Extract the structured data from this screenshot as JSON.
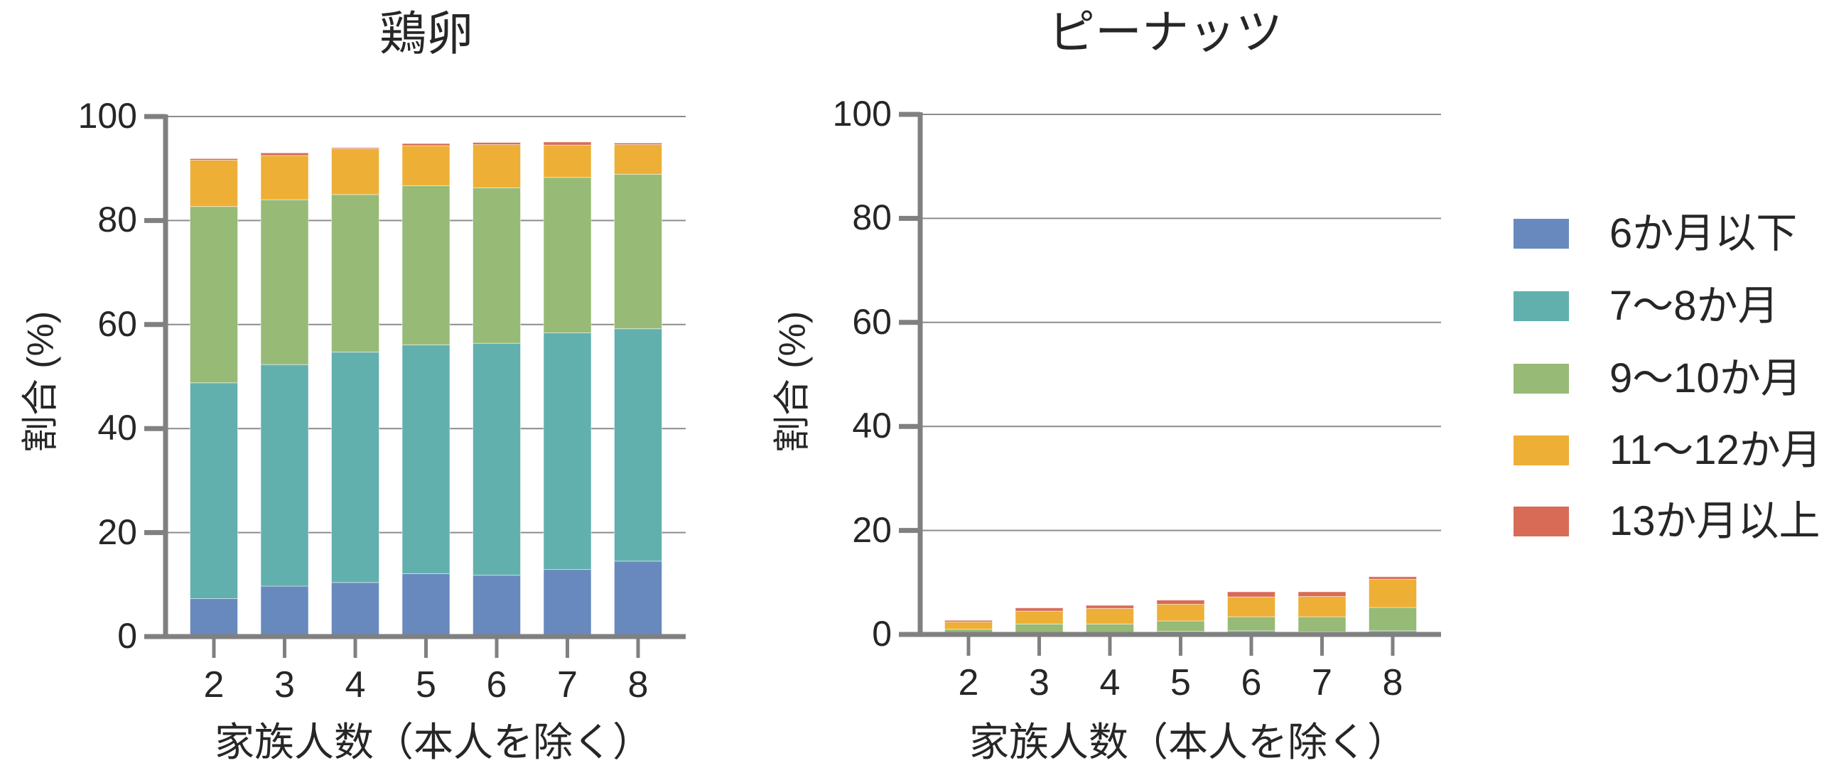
{
  "chart_data": [
    {
      "type": "bar",
      "stacked": true,
      "title": "鶏卵",
      "xlabel": "家族人数（本人を除く）",
      "ylabel": "割合 (%)",
      "ylim": [
        0,
        100
      ],
      "yticks": [
        0,
        20,
        40,
        60,
        80,
        100
      ],
      "grid": true,
      "categories": [
        "2",
        "3",
        "4",
        "5",
        "6",
        "7",
        "8"
      ],
      "series": [
        {
          "name": "6か月以下",
          "color": "#6889BD",
          "values": [
            7.3,
            9.7,
            10.4,
            12.1,
            11.8,
            12.9,
            14.5
          ]
        },
        {
          "name": "7～8か月",
          "color": "#61B0AD",
          "values": [
            41.5,
            42.6,
            44.3,
            44.0,
            44.6,
            45.5,
            44.7
          ]
        },
        {
          "name": "9～10か月",
          "color": "#97BA76",
          "values": [
            33.9,
            31.7,
            30.3,
            30.6,
            29.9,
            29.9,
            29.7
          ]
        },
        {
          "name": "11～12か月",
          "color": "#EDAF36",
          "values": [
            8.9,
            8.5,
            8.8,
            7.7,
            8.3,
            6.2,
            5.7
          ]
        },
        {
          "name": "13か月以上",
          "color": "#D86B56",
          "values": [
            0.3,
            0.5,
            0.2,
            0.4,
            0.4,
            0.6,
            0.3
          ]
        }
      ]
    },
    {
      "type": "bar",
      "stacked": true,
      "title": "ピーナッツ",
      "xlabel": "家族人数（本人を除く）",
      "ylabel": "割合 (%)",
      "ylim": [
        0,
        100
      ],
      "yticks": [
        0,
        20,
        40,
        60,
        80,
        100
      ],
      "grid": true,
      "categories": [
        "2",
        "3",
        "4",
        "5",
        "6",
        "7",
        "8"
      ],
      "series": [
        {
          "name": "6か月以下",
          "color": "#6889BD",
          "values": [
            0.0,
            0.0,
            0.0,
            0.0,
            0.0,
            0.0,
            0.0
          ]
        },
        {
          "name": "7～8か月",
          "color": "#61B0AD",
          "values": [
            0.1,
            0.2,
            0.2,
            0.6,
            0.7,
            0.5,
            0.7
          ]
        },
        {
          "name": "9～10か月",
          "color": "#97BA76",
          "values": [
            0.9,
            1.8,
            1.8,
            2.0,
            2.7,
            2.9,
            4.5
          ]
        },
        {
          "name": "11～12か月",
          "color": "#EDAF36",
          "values": [
            1.4,
            2.5,
            3.0,
            3.2,
            3.8,
            3.9,
            5.4
          ]
        },
        {
          "name": "13か月以上",
          "color": "#D86B56",
          "values": [
            0.3,
            0.6,
            0.6,
            0.8,
            1.0,
            0.9,
            0.5
          ]
        }
      ]
    }
  ],
  "legend": {
    "position": "right",
    "items": [
      {
        "label": "6か月以下",
        "color": "#6889BD"
      },
      {
        "label": "7～8か月",
        "color": "#61B0AD"
      },
      {
        "label": "9～10か月",
        "color": "#97BA76"
      },
      {
        "label": "11～12か月",
        "color": "#EDAF36"
      },
      {
        "label": "13か月以上",
        "color": "#D86B56"
      }
    ]
  },
  "style": {
    "axis_color": "#808080",
    "grid_color": "#8c8c8c",
    "text_color": "#262626"
  }
}
